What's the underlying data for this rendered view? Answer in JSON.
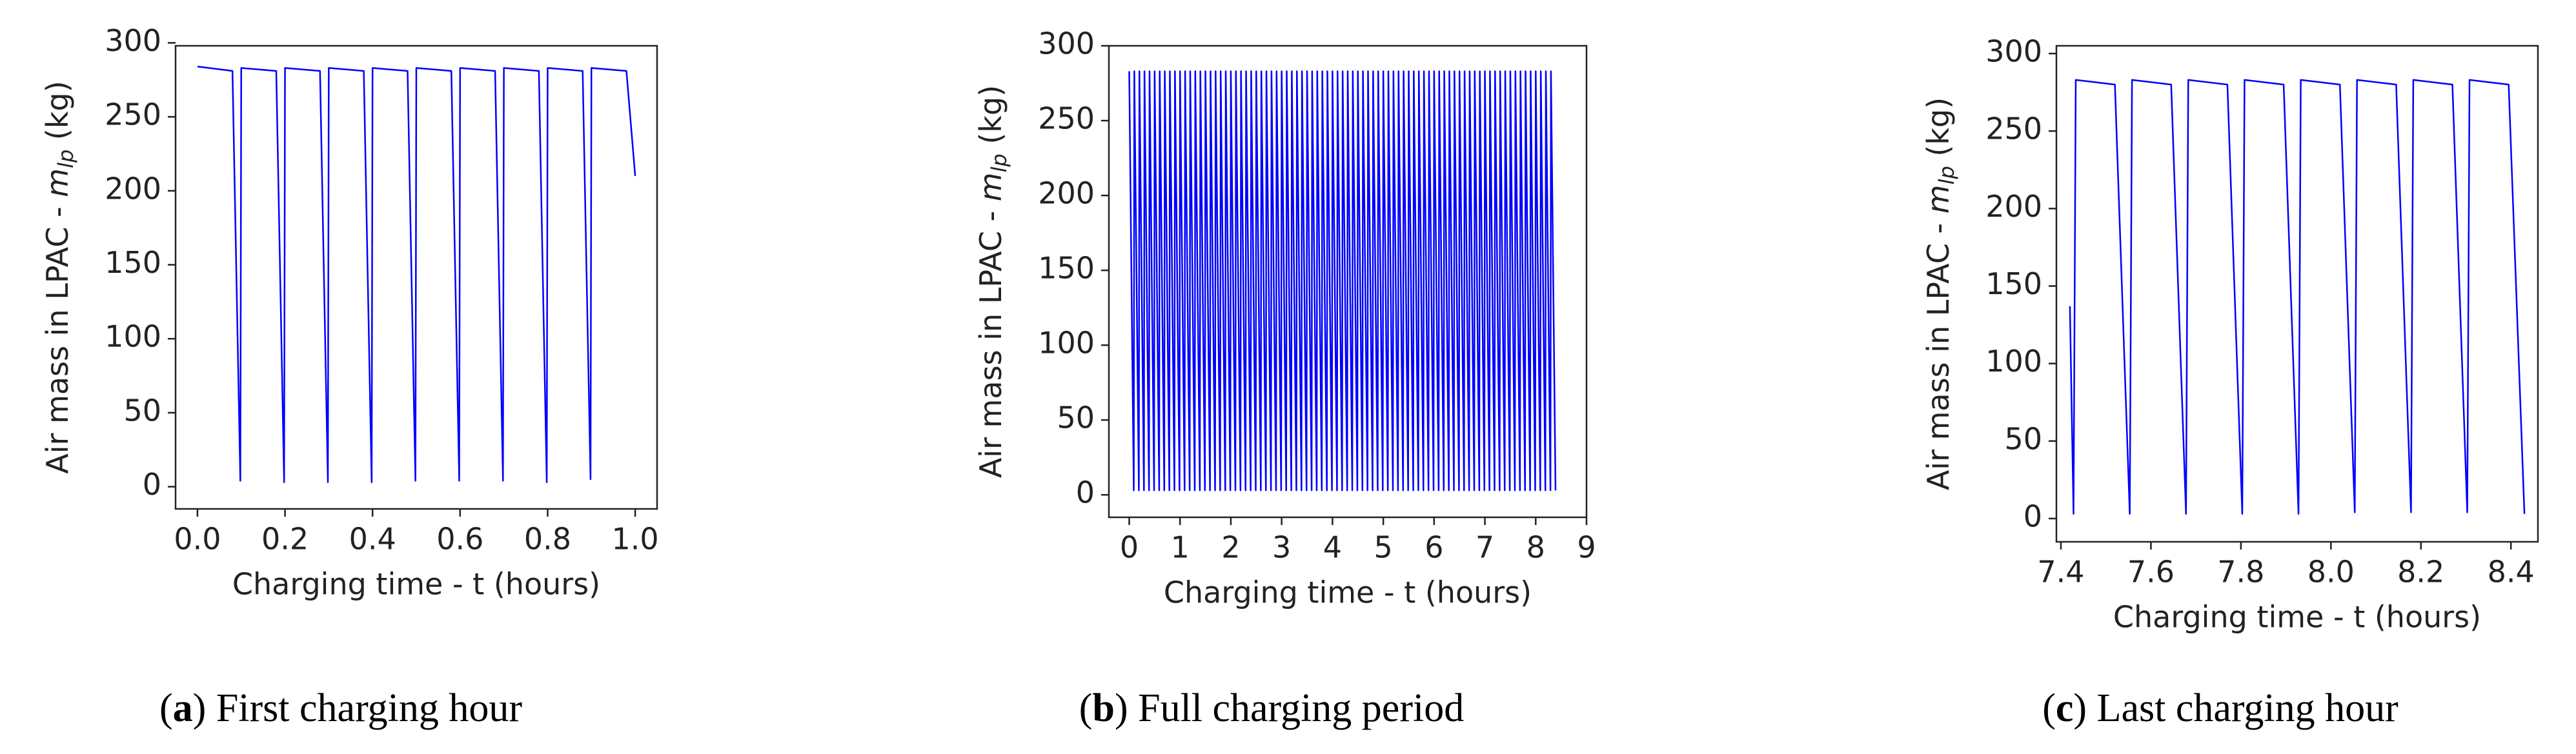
{
  "chart_data": [
    {
      "type": "line",
      "caption": [
        "(",
        "a",
        ") First charging hour"
      ],
      "xlabel": "Charging time - t (hours)",
      "ylabel": [
        "Air mass in LPAC - ",
        "m",
        "lp",
        " (kg)"
      ],
      "x": [
        0,
        0.08,
        0.098,
        0.1,
        0.18,
        0.198,
        0.2,
        0.28,
        0.298,
        0.3,
        0.38,
        0.398,
        0.4,
        0.48,
        0.498,
        0.5,
        0.58,
        0.598,
        0.6,
        0.68,
        0.698,
        0.7,
        0.78,
        0.798,
        0.8,
        0.88,
        0.898,
        0.9,
        0.98,
        1.0
      ],
      "series": [
        {
          "color": "#0000ff",
          "values": [
            284,
            281,
            4,
            283,
            281,
            3,
            283,
            281,
            3,
            283,
            281,
            3,
            283,
            281,
            4,
            283,
            281,
            4,
            283,
            281,
            4,
            283,
            281,
            3,
            283,
            281,
            5,
            283,
            281,
            210
          ]
        }
      ],
      "xlim": [
        -0.05,
        1.05
      ],
      "xticks": [
        {
          "value": 0,
          "label": "0.0"
        },
        0.2,
        0.4,
        0.6,
        0.8,
        {
          "value": 1,
          "label": "1.0"
        }
      ],
      "ylim": [
        -15,
        298
      ],
      "yticks": [
        0,
        50,
        100,
        150,
        200,
        250,
        300
      ]
    },
    {
      "type": "line",
      "caption": [
        "(",
        "b",
        ") Full charging period"
      ],
      "xlabel": "Charging time - t (hours)",
      "ylabel": [
        "Air mass in LPAC - ",
        "m",
        "lp",
        " (kg)"
      ],
      "x": [
        0,
        0.09,
        0.1,
        0.19,
        0.2,
        0.29,
        0.3,
        0.39,
        0.4,
        0.49,
        0.5,
        0.59,
        0.6,
        0.69,
        0.7,
        0.79,
        0.8,
        0.89,
        0.9,
        0.99,
        1,
        1.09,
        1.1,
        1.19,
        1.2,
        1.29,
        1.3,
        1.39,
        1.4,
        1.49,
        1.5,
        1.59,
        1.6,
        1.69,
        1.7,
        1.79,
        1.8,
        1.89,
        1.9,
        1.99,
        2,
        2.09,
        2.1,
        2.19,
        2.2,
        2.29,
        2.3,
        2.39,
        2.4,
        2.49,
        2.5,
        2.59,
        2.6,
        2.69,
        2.7,
        2.79,
        2.8,
        2.89,
        2.9,
        2.99,
        3,
        3.09,
        3.1,
        3.19,
        3.2,
        3.29,
        3.3,
        3.39,
        3.4,
        3.49,
        3.5,
        3.59,
        3.6,
        3.69,
        3.7,
        3.79,
        3.8,
        3.89,
        3.9,
        3.99,
        4,
        4.09,
        4.1,
        4.19,
        4.2,
        4.29,
        4.3,
        4.39,
        4.4,
        4.49,
        4.5,
        4.59,
        4.6,
        4.69,
        4.7,
        4.79,
        4.8,
        4.89,
        4.9,
        4.99,
        5,
        5.09,
        5.1,
        5.19,
        5.2,
        5.29,
        5.3,
        5.39,
        5.4,
        5.49,
        5.5,
        5.59,
        5.6,
        5.69,
        5.7,
        5.79,
        5.8,
        5.89,
        5.9,
        5.99,
        6,
        6.09,
        6.1,
        6.19,
        6.2,
        6.29,
        6.3,
        6.39,
        6.4,
        6.49,
        6.5,
        6.59,
        6.6,
        6.69,
        6.7,
        6.79,
        6.8,
        6.89,
        6.9,
        6.99,
        7,
        7.09,
        7.1,
        7.19,
        7.2,
        7.29,
        7.3,
        7.39,
        7.4,
        7.49,
        7.5,
        7.59,
        7.6,
        7.69,
        7.7,
        7.79,
        7.8,
        7.89,
        7.9,
        7.99,
        8,
        8.09,
        8.1,
        8.19,
        8.2,
        8.29,
        8.3,
        8.39
      ],
      "series": [
        {
          "color": "#0000ff",
          "values": [
            283,
            3,
            283,
            3,
            283,
            3,
            283,
            3,
            283,
            3,
            283,
            3,
            283,
            3,
            283,
            3,
            283,
            3,
            283,
            3,
            283,
            3,
            283,
            3,
            283,
            3,
            283,
            3,
            283,
            3,
            283,
            3,
            283,
            3,
            283,
            3,
            283,
            3,
            283,
            3,
            283,
            3,
            283,
            3,
            283,
            3,
            283,
            3,
            283,
            3,
            283,
            3,
            283,
            3,
            283,
            3,
            283,
            3,
            283,
            3,
            283,
            3,
            283,
            3,
            283,
            3,
            283,
            3,
            283,
            3,
            283,
            3,
            283,
            3,
            283,
            3,
            283,
            3,
            283,
            3,
            283,
            3,
            283,
            3,
            283,
            3,
            283,
            3,
            283,
            3,
            283,
            3,
            283,
            3,
            283,
            3,
            283,
            3,
            283,
            3,
            283,
            3,
            283,
            3,
            283,
            3,
            283,
            3,
            283,
            3,
            283,
            3,
            283,
            3,
            283,
            3,
            283,
            3,
            283,
            3,
            283,
            3,
            283,
            3,
            283,
            3,
            283,
            3,
            283,
            3,
            283,
            3,
            283,
            3,
            283,
            3,
            283,
            3,
            283,
            3,
            283,
            3,
            283,
            3,
            283,
            3,
            283,
            3,
            283,
            3,
            283,
            3,
            283,
            3,
            283,
            3,
            283,
            3,
            283,
            3,
            283,
            3,
            283,
            3,
            283,
            3,
            283,
            3
          ]
        }
      ],
      "xlim": [
        -0.4,
        9
      ],
      "xticks": [
        0,
        1,
        2,
        3,
        4,
        5,
        6,
        7,
        8,
        9
      ],
      "ylim": [
        -15,
        300
      ],
      "yticks": [
        0,
        50,
        100,
        150,
        200,
        250,
        300
      ]
    },
    {
      "type": "line",
      "caption": [
        "(",
        "c",
        ") Last charging hour"
      ],
      "xlabel": "Charging time - t (hours)",
      "ylabel": [
        "Air mass in LPAC - ",
        "m",
        "lp",
        " (kg)"
      ],
      "x": [
        7.42,
        7.428,
        7.433,
        7.52,
        7.553,
        7.558,
        7.645,
        7.678,
        7.683,
        7.77,
        7.803,
        7.808,
        7.895,
        7.928,
        7.933,
        8.02,
        8.053,
        8.058,
        8.145,
        8.178,
        8.183,
        8.27,
        8.303,
        8.308,
        8.395,
        8.43
      ],
      "series": [
        {
          "color": "#0000ff",
          "values": [
            137,
            3,
            283,
            280,
            3,
            283,
            280,
            3,
            283,
            280,
            3,
            283,
            280,
            3,
            283,
            280,
            4,
            283,
            280,
            4,
            283,
            280,
            4,
            283,
            280,
            3
          ]
        }
      ],
      "xlim": [
        7.39,
        8.46
      ],
      "xticks": [
        7.4,
        7.6,
        7.8,
        {
          "value": 8,
          "label": "8.0"
        },
        8.2,
        8.4
      ],
      "ylim": [
        -15,
        305
      ],
      "yticks": [
        0,
        50,
        100,
        150,
        200,
        250,
        300
      ]
    }
  ]
}
